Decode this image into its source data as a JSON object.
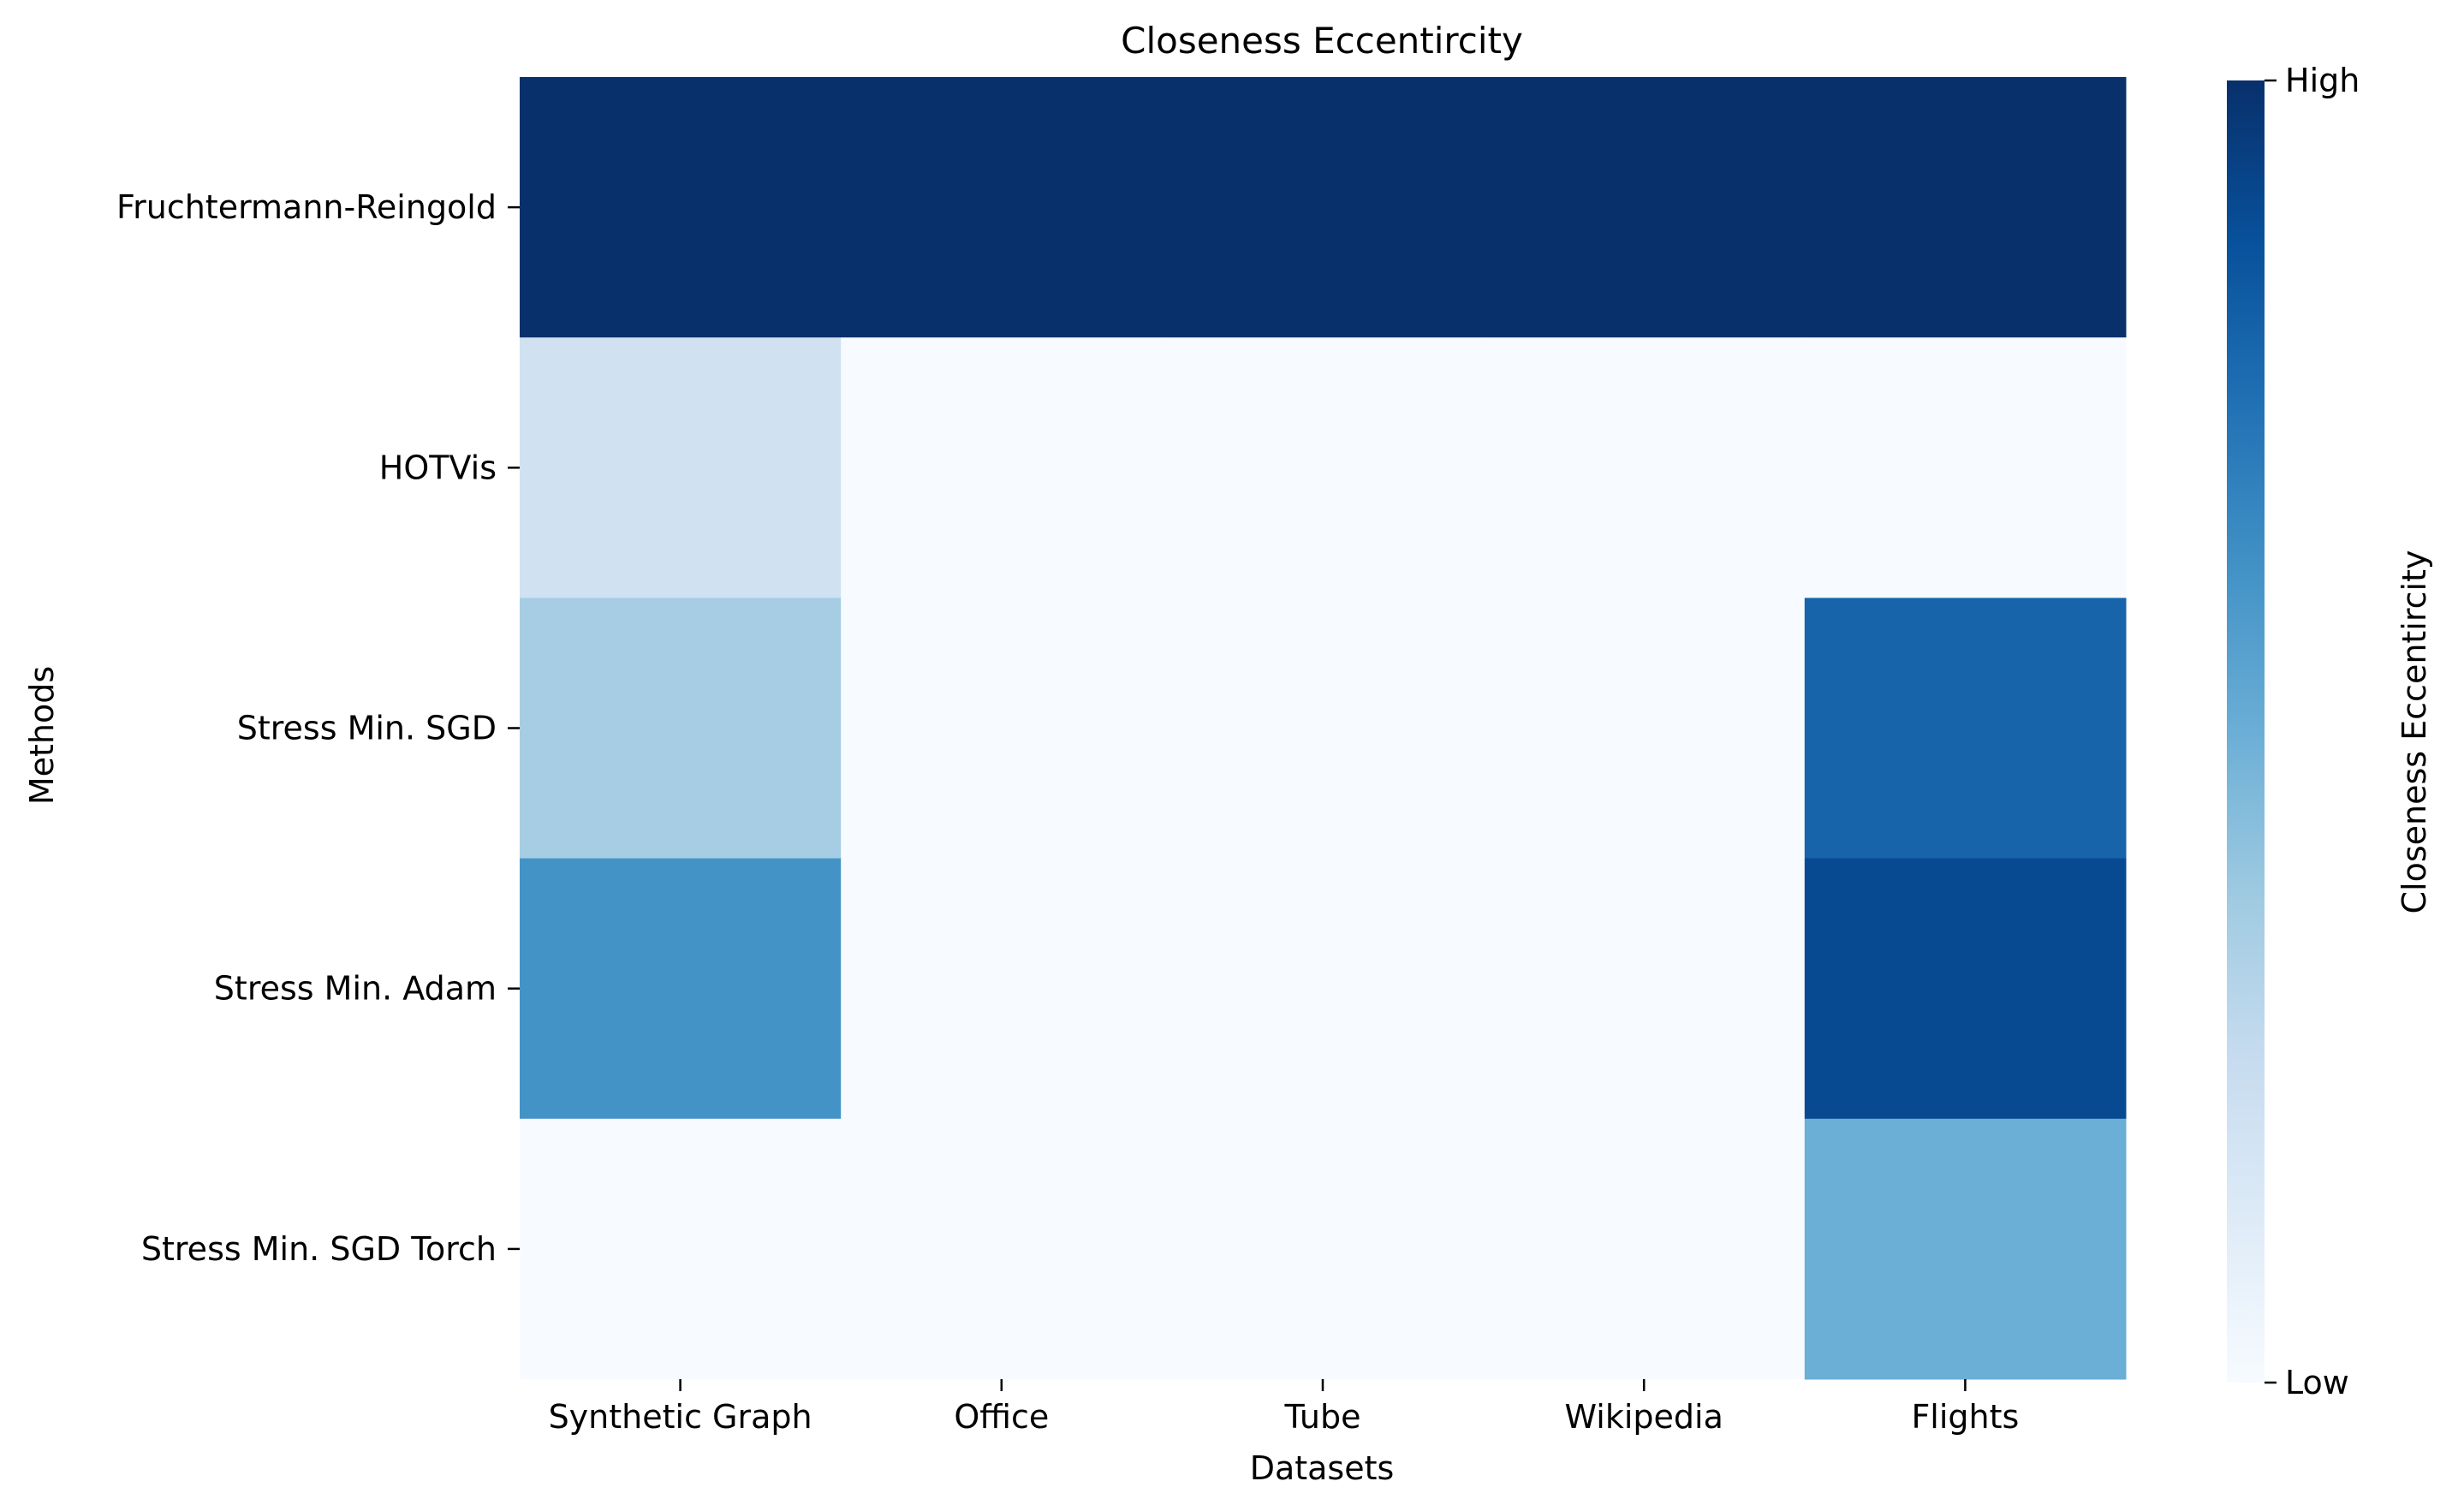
{
  "chart_data": {
    "type": "heatmap",
    "title": "Closeness Eccentircity",
    "xlabel": "Datasets",
    "ylabel": "Methods",
    "x": [
      "Synthetic Graph",
      "Office",
      "Tube",
      "Wikipedia",
      "Flights"
    ],
    "y": [
      "Fruchtermann-Reingold",
      "HOTVis",
      "Stress Min. SGD",
      "Stress Min. Adam",
      "Stress Min. SGD Torch"
    ],
    "values": [
      [
        1.0,
        1.0,
        1.0,
        1.0,
        1.0
      ],
      [
        0.2,
        0.0,
        0.0,
        0.0,
        0.0
      ],
      [
        0.35,
        0.0,
        0.0,
        0.0,
        0.8
      ],
      [
        0.62,
        0.0,
        0.0,
        0.0,
        0.9
      ],
      [
        0.0,
        0.0,
        0.0,
        0.0,
        0.5
      ]
    ],
    "colormap": "Blues",
    "colorbar": {
      "label": "Closeness Eccentircity",
      "ticks": [
        {
          "value": 1.0,
          "label": "High"
        },
        {
          "value": 0.0,
          "label": "Low"
        }
      ]
    }
  }
}
